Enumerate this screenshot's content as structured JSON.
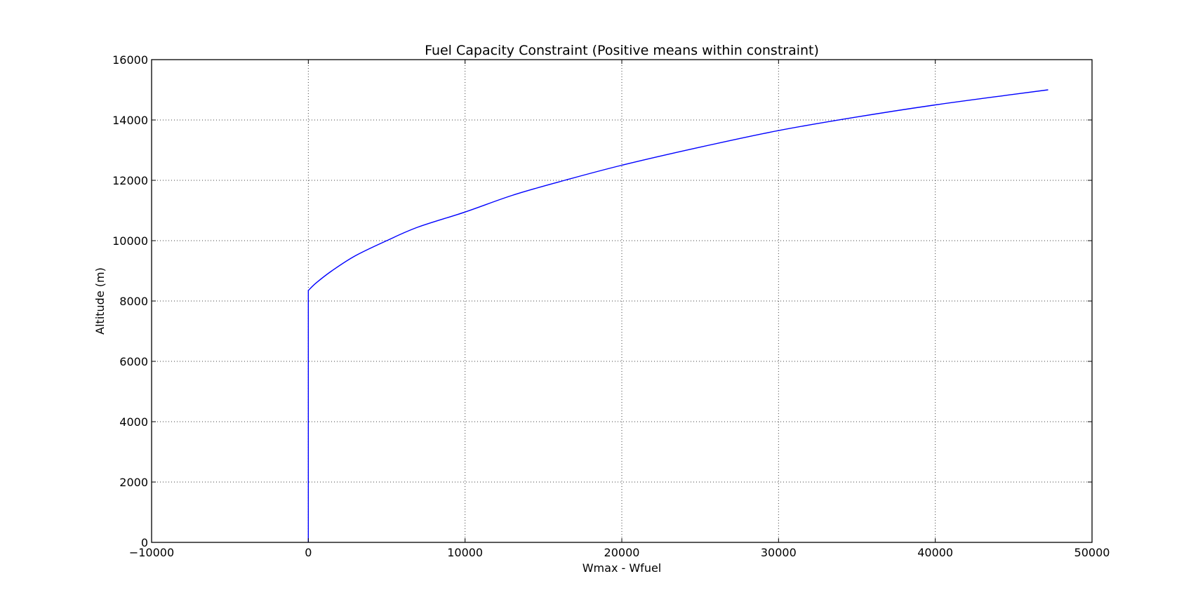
{
  "chart_data": {
    "type": "line",
    "title": "Fuel Capacity Constraint (Positive means within constraint)",
    "xlabel": "Wmax - Wfuel",
    "ylabel": "Altitude (m)",
    "xlim": [
      -10000,
      50000
    ],
    "ylim": [
      0,
      16000
    ],
    "x_ticks": [
      -10000,
      0,
      10000,
      20000,
      30000,
      40000,
      50000
    ],
    "x_tick_labels": [
      "−10000",
      "0",
      "10000",
      "20000",
      "30000",
      "40000",
      "50000"
    ],
    "y_ticks": [
      0,
      2000,
      4000,
      6000,
      8000,
      10000,
      12000,
      14000,
      16000
    ],
    "y_tick_labels": [
      "0",
      "2000",
      "4000",
      "6000",
      "8000",
      "10000",
      "12000",
      "14000",
      "16000"
    ],
    "grid": true,
    "series": [
      {
        "color": "#0000ff",
        "x": [
          0,
          0,
          500,
          1500,
          3000,
          5000,
          7000,
          10000,
          13000,
          16000,
          20000,
          25000,
          30000,
          35000,
          40000,
          45000,
          47200
        ],
        "y": [
          0,
          8350,
          8600,
          9000,
          9500,
          10000,
          10450,
          10950,
          11500,
          11950,
          12500,
          13100,
          13650,
          14100,
          14500,
          14850,
          15000
        ]
      }
    ]
  }
}
